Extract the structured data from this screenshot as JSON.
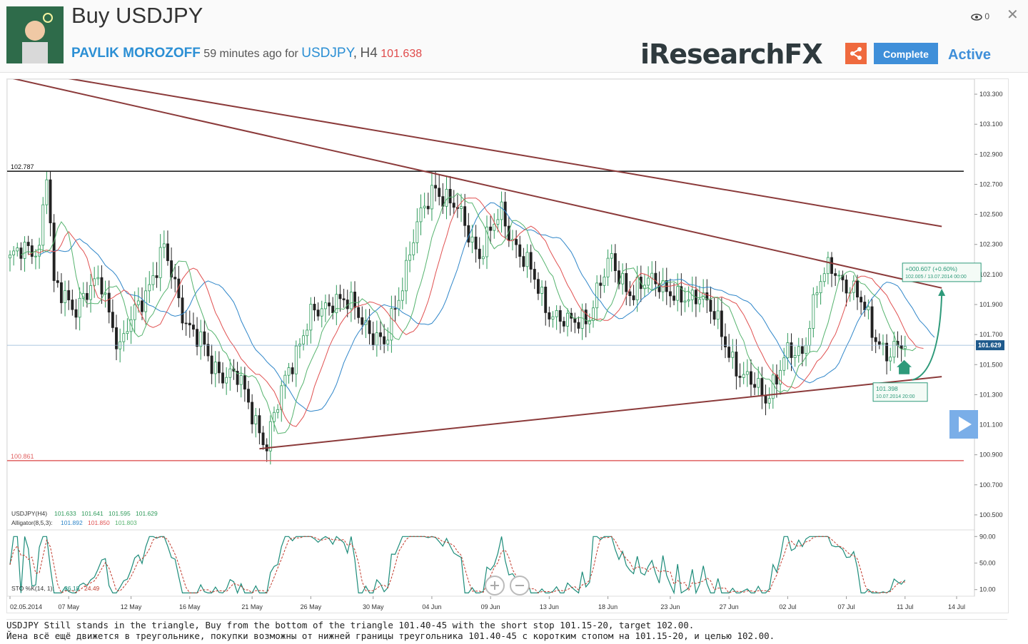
{
  "header": {
    "title": "Buy USDJPY",
    "author": "PAVLIK MOROZOFF",
    "time_ago": "59 minutes ago",
    "for_word": "for",
    "symbol": "USDJPY",
    "separator": ",",
    "timeframe": "H4",
    "price": "101.638",
    "logo": "iResearchFX",
    "complete_label": "Complete",
    "status": "Active",
    "views": "0",
    "close_glyph": "✕"
  },
  "description": {
    "line1": "USDJPY Still stands in the triangle, Buy from the bottom of the triangle 101.40-45 with the short stop 101.15-20, target 102.00.",
    "line2": "Йена всё ещё движется в треугольнике, покупки возможны от нижней границы треугольника 101.40-45 с коротким стопом на 101.15-20, и целью 102.00."
  },
  "colors": {
    "accent": "#3f8fd9",
    "trend": "#8b3a3a",
    "bull": "#2e9a5a",
    "bear": "#222222",
    "share": "#ef6a3e",
    "price": "#e04b4b"
  },
  "chart_data": {
    "type": "candlestick",
    "symbol": "USDJPY(H4)",
    "ohlc_legend": [
      "101.633",
      "101.641",
      "101.595",
      "101.629"
    ],
    "indicator_label": "Alligator(8,5,3):",
    "indicator_values": [
      "101.892",
      "101.850",
      "101.803"
    ],
    "ylim": [
      100.4,
      103.4
    ],
    "yticks": [
      "103.300",
      "103.100",
      "102.900",
      "102.700",
      "102.500",
      "102.300",
      "102.100",
      "101.900",
      "101.700",
      "101.500",
      "101.300",
      "101.100",
      "100.900",
      "100.700",
      "100.500"
    ],
    "xticks": [
      "02.05.2014",
      "07 May",
      "12 May",
      "16 May",
      "21 May",
      "26 May",
      "30 May",
      "04 Jun",
      "09 Jun",
      "13 Jun",
      "18 Jun",
      "23 Jun",
      "27 Jun",
      "02 Jul",
      "07 Jul",
      "11 Jul",
      "14 Jul"
    ],
    "current_price": "101.629",
    "current_price_value": 101.629,
    "resistance": {
      "label": "102.787",
      "value": 102.787
    },
    "support": {
      "label": "100.861",
      "value": 100.861
    },
    "anchors": [
      {
        "i": 0,
        "p": 102.2
      },
      {
        "i": 8,
        "p": 102.3
      },
      {
        "i": 10,
        "p": 102.8
      },
      {
        "i": 12,
        "p": 102.0
      },
      {
        "i": 18,
        "p": 101.9
      },
      {
        "i": 25,
        "p": 102.05
      },
      {
        "i": 30,
        "p": 101.6
      },
      {
        "i": 35,
        "p": 101.9
      },
      {
        "i": 42,
        "p": 102.25
      },
      {
        "i": 48,
        "p": 101.8
      },
      {
        "i": 55,
        "p": 101.5
      },
      {
        "i": 62,
        "p": 101.4
      },
      {
        "i": 66,
        "p": 101.2
      },
      {
        "i": 70,
        "p": 100.95
      },
      {
        "i": 76,
        "p": 101.5
      },
      {
        "i": 82,
        "p": 101.8
      },
      {
        "i": 88,
        "p": 101.95
      },
      {
        "i": 95,
        "p": 101.85
      },
      {
        "i": 102,
        "p": 101.6
      },
      {
        "i": 110,
        "p": 102.35
      },
      {
        "i": 116,
        "p": 102.7
      },
      {
        "i": 121,
        "p": 102.55
      },
      {
        "i": 128,
        "p": 102.25
      },
      {
        "i": 134,
        "p": 102.5
      },
      {
        "i": 140,
        "p": 102.2
      },
      {
        "i": 146,
        "p": 101.9
      },
      {
        "i": 152,
        "p": 101.75
      },
      {
        "i": 158,
        "p": 101.85
      },
      {
        "i": 164,
        "p": 102.2
      },
      {
        "i": 170,
        "p": 101.95
      },
      {
        "i": 176,
        "p": 102.1
      },
      {
        "i": 182,
        "p": 101.9
      },
      {
        "i": 188,
        "p": 102.0
      },
      {
        "i": 194,
        "p": 101.7
      },
      {
        "i": 200,
        "p": 101.4
      },
      {
        "i": 206,
        "p": 101.3
      },
      {
        "i": 212,
        "p": 101.55
      },
      {
        "i": 216,
        "p": 101.6
      },
      {
        "i": 220,
        "p": 102.0
      },
      {
        "i": 224,
        "p": 102.15
      },
      {
        "i": 228,
        "p": 102.05
      },
      {
        "i": 232,
        "p": 101.9
      },
      {
        "i": 236,
        "p": 101.7
      },
      {
        "i": 240,
        "p": 101.55
      },
      {
        "i": 244,
        "p": 101.63
      }
    ],
    "jaw_offset": 0.12,
    "triangle_lines": [
      {
        "i1": 5,
        "p1": 103.45,
        "i2": 254,
        "p2": 102.42
      },
      {
        "i1": -2,
        "p1": 103.42,
        "i2": 254,
        "p2": 102.01
      },
      {
        "i1": 68,
        "p1": 100.94,
        "i2": 254,
        "p2": 101.42
      }
    ],
    "forecast": {
      "arrow_label": "+000.607 (+0.60%)",
      "arrow_sub": "102.005 / 13.07.2014 00:00",
      "entry_label": "101.398",
      "entry_sub": "10.07.2014 20:00",
      "from": {
        "i": 246,
        "p": 101.398
      },
      "to": {
        "i": 254,
        "p": 102.005
      }
    },
    "oscillator": {
      "label": "STO %K(14, 1):",
      "k": "26.18",
      "d": "24.49",
      "yticks": [
        "90.00",
        "50.00",
        "10.00"
      ],
      "ylim": [
        0,
        100
      ]
    }
  }
}
